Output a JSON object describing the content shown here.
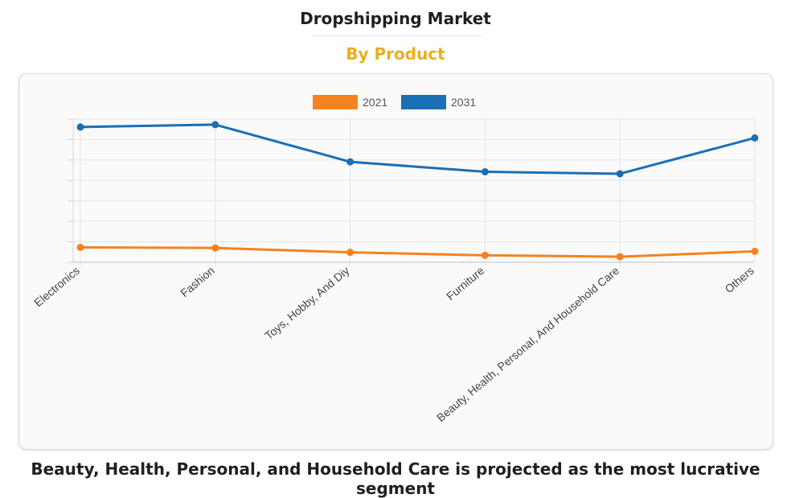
{
  "header": {
    "title": "Dropshipping Market",
    "subtitle": "By Product",
    "subtitle_color": "#e8b020"
  },
  "footer": {
    "caption": "Beauty, Health, Personal, and Household Care is projected as the most lucrative segment"
  },
  "chart_data": {
    "type": "line",
    "categories": [
      "Electronics",
      "Fashion",
      "Toys, Hobby, And Diy",
      "Furniture",
      "Beauty, Health, Personal, And Household Care",
      "Others"
    ],
    "series": [
      {
        "name": "2021",
        "color": "#f5821f",
        "values": [
          7.5,
          7.2,
          5.0,
          3.5,
          2.8,
          5.5
        ]
      },
      {
        "name": "2031",
        "color": "#1a6fb5",
        "values": [
          68,
          69.2,
          50.5,
          45.5,
          44.5,
          62.5
        ]
      }
    ],
    "ylim": [
      0,
      72
    ],
    "y_gridlines": 7,
    "grid": true,
    "legend_position": "top-center",
    "xlabel": "",
    "ylabel": ""
  }
}
